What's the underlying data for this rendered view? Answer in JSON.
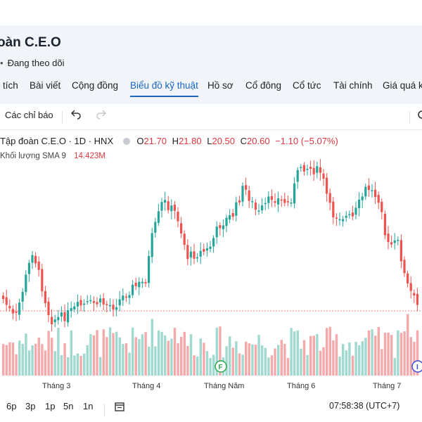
{
  "header": {
    "title": "oàn C.E.O",
    "follow_label": "Đang theo dõi"
  },
  "tabs": [
    {
      "label": "tích",
      "active": false
    },
    {
      "label": "Bài viết",
      "active": false
    },
    {
      "label": "Cộng đồng",
      "active": false
    },
    {
      "label": "Biểu đồ kỹ thuật",
      "active": true
    },
    {
      "label": "Hồ sơ",
      "active": false
    },
    {
      "label": "Cổ đông",
      "active": false
    },
    {
      "label": "Cổ tức",
      "active": false
    },
    {
      "label": "Tài chính",
      "active": false
    },
    {
      "label": "Giá quá k",
      "active": false
    }
  ],
  "toolbar": {
    "indicators_label": "Các chỉ báo",
    "undo_icon": "undo-icon",
    "redo_icon": "redo-icon",
    "settings_icon": "gear-icon"
  },
  "legend": {
    "symbol": "Tập đoàn C.E.O · 1D · HNX",
    "open_label": "O",
    "open": "21.70",
    "high_label": "H",
    "high": "21.80",
    "low_label": "L",
    "low": "20.50",
    "close_label": "C",
    "close": "20.60",
    "change": "−1.10 (−5.07%)",
    "volume_label": "Khối lượng SMA 9",
    "volume_value": "14.423M"
  },
  "chart_data": {
    "type": "candlestick",
    "x_tick_labels": [
      "Tháng 3",
      "Tháng 4",
      "Tháng Năm",
      "Tháng 6",
      "Tháng 7"
    ],
    "last_close": 20.6,
    "y_range_estimate": [
      19.5,
      40.0
    ],
    "up_color": "#26a69a",
    "down_color": "#ef5350",
    "markers": [
      "F",
      "I"
    ],
    "grid": false
  },
  "bottom": {
    "ranges": [
      "6p",
      "3p",
      "1p",
      "5n",
      "1n"
    ],
    "date_range_icon": "calendar-range-icon",
    "time": "07:58:38 (UTC+7)"
  },
  "colors": {
    "accent": "#1a66c2",
    "up": "#26a69a",
    "down": "#ef5350",
    "up_volume": "#9fd9cf",
    "down_volume": "#f6a9ab"
  }
}
